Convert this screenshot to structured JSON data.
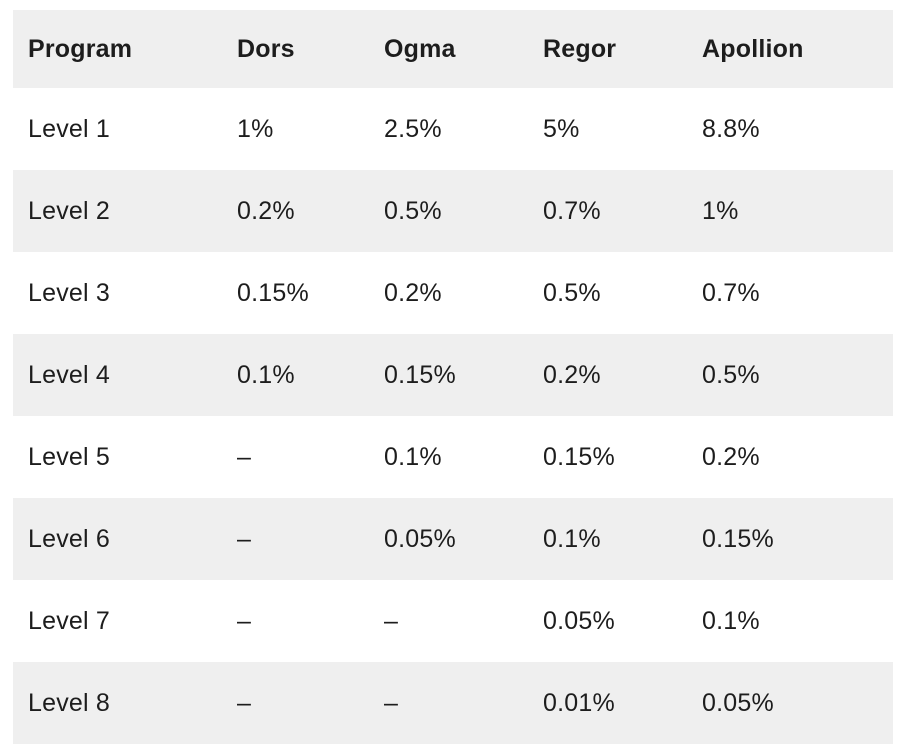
{
  "colors": {
    "stripe": "#efefef",
    "background": "#ffffff",
    "text": "#1d1d1d"
  },
  "chart_data": {
    "type": "table",
    "columns": [
      "Program",
      "Dors",
      "Ogma",
      "Regor",
      "Apollion"
    ],
    "rows": [
      [
        "Level 1",
        "1%",
        "2.5%",
        "5%",
        "8.8%"
      ],
      [
        "Level 2",
        "0.2%",
        "0.5%",
        "0.7%",
        "1%"
      ],
      [
        "Level 3",
        "0.15%",
        "0.2%",
        "0.5%",
        "0.7%"
      ],
      [
        "Level 4",
        "0.1%",
        "0.15%",
        "0.2%",
        "0.5%"
      ],
      [
        "Level 5",
        "–",
        "0.1%",
        "0.15%",
        "0.2%"
      ],
      [
        "Level 6",
        "–",
        "0.05%",
        "0.1%",
        "0.15%"
      ],
      [
        "Level 7",
        "–",
        "–",
        "0.05%",
        "0.1%"
      ],
      [
        "Level 8",
        "–",
        "–",
        "0.01%",
        "0.05%"
      ]
    ]
  }
}
